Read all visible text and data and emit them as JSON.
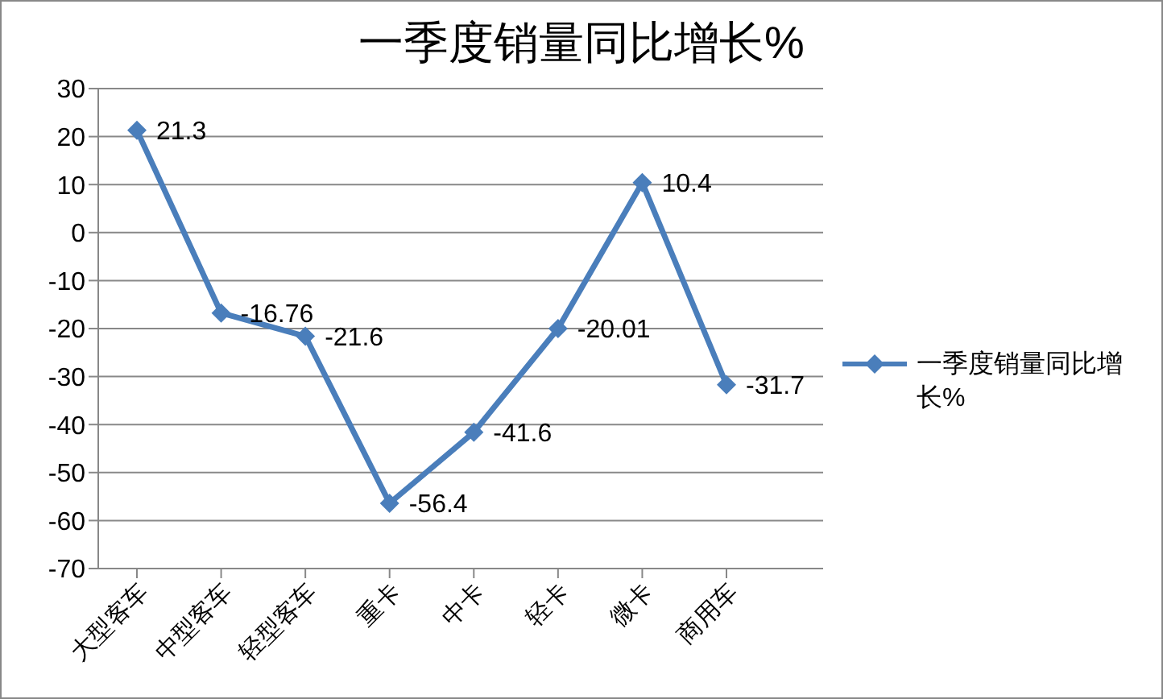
{
  "chart_data": {
    "type": "line",
    "title": "一季度销量同比增长%",
    "categories": [
      "大型客车",
      "中型客车",
      "轻型客车",
      "重卡",
      "中卡",
      "轻卡",
      "微卡",
      "商用车"
    ],
    "series": [
      {
        "name": "一季度销量同比增长%",
        "color": "#4a7ebb",
        "values": [
          21.3,
          -16.76,
          -21.6,
          -56.4,
          -41.6,
          -20.01,
          10.4,
          -31.7
        ]
      }
    ],
    "ylim": [
      -70,
      30
    ],
    "yticks": [
      -70,
      -60,
      -50,
      -40,
      -30,
      -20,
      -10,
      0,
      10,
      20,
      30
    ],
    "grid": "y",
    "legend": "right",
    "marker": "diamond",
    "line_style": "solid",
    "data_labels": true
  }
}
